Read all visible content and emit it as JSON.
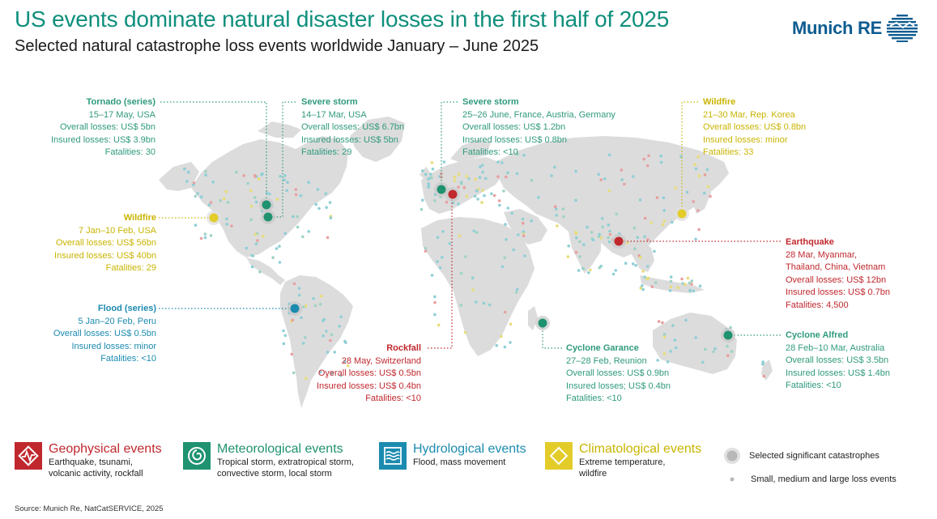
{
  "title": "US events dominate natural disaster losses in the first half of 2025",
  "subtitle": "Selected natural catastrophe loss events worldwide January – June 2025",
  "logo": {
    "text": "Munich RE"
  },
  "colors": {
    "geophysical": "#c0282e",
    "meteorological": "#1f9270",
    "hydrological": "#1c8bb0",
    "climatological": "#e3cc2a",
    "land": "#dcdcdc"
  },
  "events": {
    "tornado": {
      "title": "Tornado (series)",
      "date": "15–17 May, USA",
      "overall": "Overall losses: US$ 5bn",
      "insured": "Insured losses: US$ 3.9bn",
      "fatalities": "Fatalities: 30"
    },
    "storm_usa": {
      "title": "Severe storm",
      "date": "14–17 Mar, USA",
      "overall": "Overall losses: US$ 6.7bn",
      "insured": "Insured losses: US$ 5bn",
      "fatalities": "Fatalities: 29"
    },
    "storm_europe": {
      "title": "Severe storm",
      "date": "25–26 June, France, Austria, Germany",
      "overall": "Overall losses: US$ 1.2bn",
      "insured": "Insured losses: US$ 0.8bn",
      "fatalities": "Fatalities: <10"
    },
    "wildfire_korea": {
      "title": "Wildfire",
      "date": "21–30 Mar, Rep. Korea",
      "overall": "Overall losses: US$ 0.8bn",
      "insured": "Insured losses: minor",
      "fatalities": "Fatalities: 33"
    },
    "wildfire_usa": {
      "title": "Wildfire",
      "date": "7 Jan–10 Feb, USA",
      "overall": "Overall losses: US$ 56bn",
      "insured": "Insured losses: US$ 40bn",
      "fatalities": "Fatalities: 29"
    },
    "earthquake": {
      "title": "Earthquake",
      "date": "28 Mar, Myanmar,",
      "date2": "Thailand, China, Vietnam",
      "overall": "Overall losses: US$ 12bn",
      "insured": "Insured losses: US$ 0.7bn",
      "fatalities": "Fatalities: 4,500"
    },
    "flood": {
      "title": "Flood (series)",
      "date": "5 Jan–20 Feb, Peru",
      "overall": "Overall losses: US$ 0.5bn",
      "insured": "Insured losses: minor",
      "fatalities": "Fatalities: <10"
    },
    "rockfall": {
      "title": "Rockfall",
      "date": "28 May, Switzerland",
      "overall": "Overall losses: US$ 0.5bn",
      "insured": "Insured losses: US$ 0.4bn",
      "fatalities": "Fatalities: <10"
    },
    "cyclone_garance": {
      "title": "Cyclone Garance",
      "date": "27–28 Feb, Reunion",
      "overall": "Overall losses: US$ 0.9bn",
      "insured": "Insured losses; US$ 0.4bn",
      "fatalities": "Fatalities: <10"
    },
    "cyclone_alfred": {
      "title": "Cyclone Alfred",
      "date": "28 Feb–10 Mar, Australia",
      "overall": "Overall losses: US$ 3.5bn",
      "insured": "Insured losses: US$ 1.4bn",
      "fatalities": "Fatalities: <10"
    }
  },
  "legend": {
    "geophysical": {
      "title": "Geophysical events",
      "desc1": "Earthquake, tsunami,",
      "desc2": "volcanic activity, rockfall",
      "icon": "earthquake-icon"
    },
    "meteorological": {
      "title": "Meteorological events",
      "desc1": "Tropical storm, extratropical storm,",
      "desc2": "convective storm, local storm",
      "icon": "cyclone-icon"
    },
    "hydrological": {
      "title": "Hydrological events",
      "desc1": "Flood, mass movement",
      "desc2": "",
      "icon": "wave-icon"
    },
    "climatological": {
      "title": "Climatological events",
      "desc1": "Extreme temperature,",
      "desc2": "wildfire",
      "icon": "diamond-icon"
    },
    "selected": "Selected significant catastrophes",
    "small": "Small, medium and large loss events"
  },
  "source": "Source: Munich Re, NatCatSERVICE, 2025"
}
